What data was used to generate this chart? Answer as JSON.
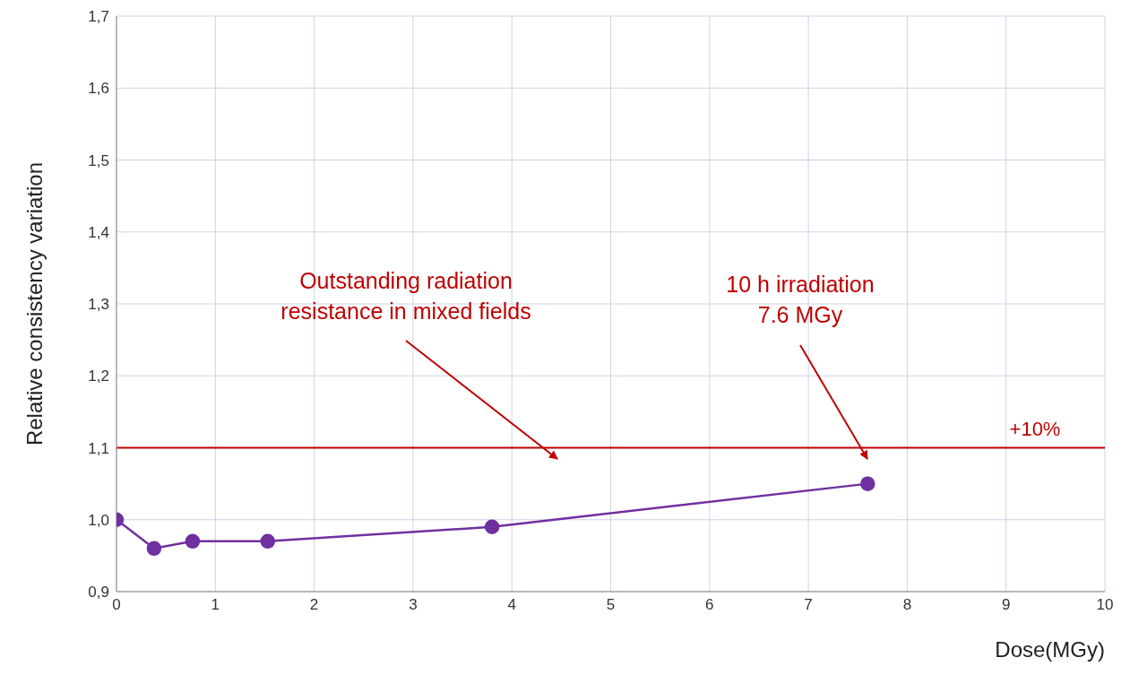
{
  "chart_data": {
    "type": "line",
    "xlabel": "Dose(MGy)",
    "ylabel": "Relative consistency variation",
    "x": [
      0,
      0.38,
      0.77,
      1.53,
      3.8,
      7.6
    ],
    "series": [
      {
        "color": "#7030a0",
        "values": [
          1.0,
          0.96,
          0.97,
          0.97,
          0.99,
          1.05
        ]
      }
    ],
    "xlim": [
      0,
      10
    ],
    "xticks": [
      0,
      1,
      2,
      3,
      4,
      5,
      6,
      7,
      8,
      9,
      10
    ],
    "ylim": [
      0.9,
      1.7
    ],
    "yticks": [
      {
        "value": 0.9,
        "label": "0,9"
      },
      {
        "value": 1.0,
        "label": "1,0"
      },
      {
        "value": 1.1,
        "label": "1,1"
      },
      {
        "value": 1.2,
        "label": "1,2"
      },
      {
        "value": 1.3,
        "label": "1,3"
      },
      {
        "value": 1.4,
        "label": "1,4"
      },
      {
        "value": 1.5,
        "label": "1,5"
      },
      {
        "value": 1.6,
        "label": "1,6"
      },
      {
        "value": 1.7,
        "label": "1,7"
      }
    ],
    "ref_lines": [
      {
        "axis": "y",
        "value": 1.1,
        "color": "#c00000"
      }
    ],
    "annotations": [
      "Outstanding radiation\nresistance in mixed fields",
      "10 h irradiation\n7.6 MGy",
      "+10%"
    ],
    "grid": true,
    "legend": false,
    "marker": "circle",
    "line_style": "solid"
  }
}
